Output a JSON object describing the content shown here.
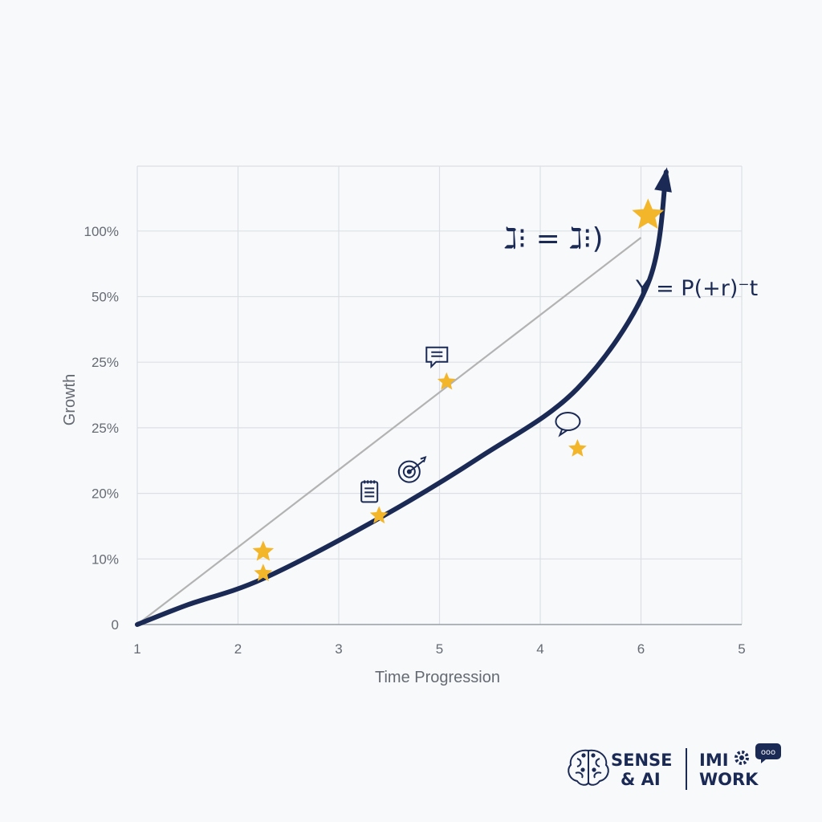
{
  "chart_data": {
    "type": "line",
    "xlabel": "Time Progression",
    "ylabel": "Growth",
    "x_ticks": [
      "1",
      "2",
      "3",
      "5",
      "4",
      "6",
      "5"
    ],
    "y_ticks": [
      "0",
      "10%",
      "20%",
      "25%",
      "25%",
      "50%",
      "100%"
    ],
    "series": [
      {
        "values": [
          [
            1,
            0
          ],
          [
            1.5,
            0.3
          ],
          [
            2.25,
            0.7
          ],
          [
            3.4,
            1.62
          ],
          [
            4.4,
            2.55
          ],
          [
            5.37,
            3.6
          ],
          [
            6.07,
            5.2
          ],
          [
            6.25,
            6.9
          ]
        ]
      },
      {
        "values": [
          [
            1,
            0
          ],
          [
            6.0,
            5.9
          ]
        ]
      }
    ],
    "markers": [
      {
        "x": 2.25,
        "y": 1.11,
        "kind": "star"
      },
      {
        "x": 2.25,
        "y": 0.78,
        "kind": "star"
      },
      {
        "x": 3.4,
        "y": 1.66,
        "kind": "star",
        "icon": "clipboard-icon"
      },
      {
        "x": 3.7,
        "y": 2.33,
        "kind": "target-icon"
      },
      {
        "x": 5.37,
        "y": 2.68,
        "kind": "star",
        "icon": "speech-bubble-icon"
      },
      {
        "x": 4.07,
        "y": 3.7,
        "kind": "star",
        "icon": "message-icon"
      },
      {
        "x": 6.07,
        "y": 6.24,
        "kind": "star"
      }
    ],
    "annotations": [
      "ℷ⁝ = ℷ⁝)",
      "Y = P(+r)⁻t"
    ],
    "colors": {
      "curve": "#1b2a55",
      "line": "#b3b3b3",
      "star": "#f3b62b",
      "grid": "#dcdfe4"
    }
  },
  "brand": {
    "left_line1": "SENSE",
    "left_line2": "& AI",
    "right_line1": "IMI",
    "right_line2": "WORK",
    "bubble_text": "ооо"
  }
}
